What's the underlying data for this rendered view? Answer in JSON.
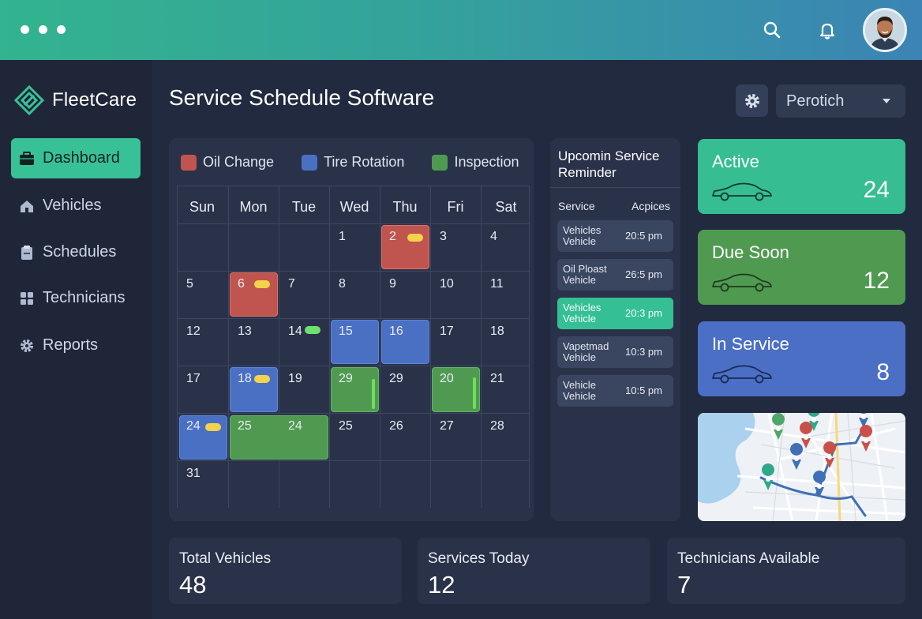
{
  "app": {
    "name": "FleetCare"
  },
  "page": {
    "title": "Service Schedule Software"
  },
  "header": {
    "select_value": "Perotich"
  },
  "sidebar": {
    "items": [
      {
        "label": "Dashboard",
        "icon": "briefcase-icon",
        "active": true
      },
      {
        "label": "Vehicles",
        "icon": "home-icon"
      },
      {
        "label": "Schedules",
        "icon": "clipboard-icon"
      },
      {
        "label": "Technicians",
        "icon": "grid-icon"
      },
      {
        "label": "Reports",
        "icon": "gear-icon"
      }
    ]
  },
  "calendar": {
    "legend": [
      {
        "label": "Oil Change",
        "color": "#c0554f"
      },
      {
        "label": "Tire Rotation",
        "color": "#4a70c4"
      },
      {
        "label": "Inspection",
        "color": "#4f9a50"
      }
    ],
    "days": [
      "Sun",
      "Mon",
      "Tue",
      "Wed",
      "Thu",
      "Fri",
      "Sat"
    ],
    "weeks": [
      [
        "",
        "",
        "",
        "1",
        "2",
        "3",
        "4"
      ],
      [
        "5",
        "6",
        "7",
        "8",
        "9",
        "10",
        "11"
      ],
      [
        "12",
        "13",
        "14",
        "15",
        "16",
        "17",
        "18"
      ],
      [
        "17",
        "18",
        "19",
        "29",
        "29",
        "20",
        "21"
      ],
      [
        "24",
        "25",
        "24",
        "25",
        "26",
        "27",
        "28"
      ],
      [
        "31",
        "",
        "",
        "",
        "",
        "",
        ""
      ]
    ]
  },
  "reminders": {
    "title": "Upcomin Service Reminder",
    "col_service": "Service",
    "col_actions": "Acpices",
    "items": [
      {
        "name": "Vehicles Vehicle",
        "time": "20:5 pm"
      },
      {
        "name": "Oil Ploast Vehicle",
        "time": "26:5 pm"
      },
      {
        "name": "Vehicles Vehicle",
        "time": "20:3 pm",
        "active": true
      },
      {
        "name": "Vapetmad Vehicle",
        "time": "10:3 pm"
      },
      {
        "name": "Vehicle Vehicle",
        "time": "10:5 pm"
      }
    ]
  },
  "status": [
    {
      "label": "Active",
      "value": "24",
      "color": "#36bd92"
    },
    {
      "label": "Due Soon",
      "value": "12",
      "color": "#4f9a50"
    },
    {
      "label": "In Service",
      "value": "8",
      "color": "#4a6fc4"
    }
  ],
  "summary": [
    {
      "label": "Total Vehicles",
      "value": "48"
    },
    {
      "label": "Services Today",
      "value": "12"
    },
    {
      "label": "Technicians Available",
      "value": "7"
    }
  ]
}
